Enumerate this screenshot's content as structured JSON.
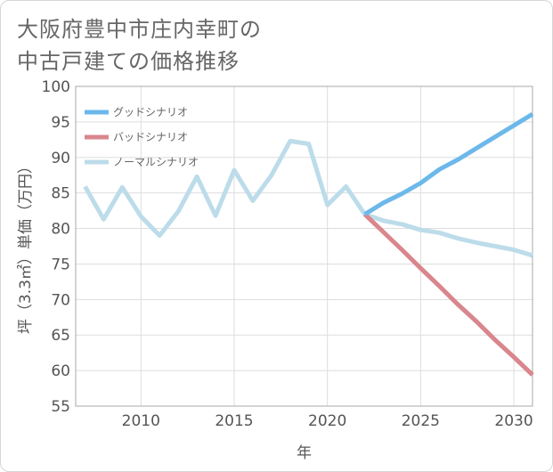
{
  "chart_data": {
    "type": "line",
    "title": "大阪府豊中市庄内幸町の\n中古戸建ての価格推移",
    "xlabel": "年",
    "ylabel": "坪（3.3㎡）単価（万円）",
    "xlim": [
      2006.5,
      2031
    ],
    "ylim": [
      55,
      100
    ],
    "x_ticks": [
      2010,
      2015,
      2020,
      2025,
      2030
    ],
    "y_ticks": [
      55,
      60,
      65,
      70,
      75,
      80,
      85,
      90,
      95,
      100
    ],
    "grid": true,
    "legend_position": "top-left",
    "series": [
      {
        "name": "グッドシナリオ",
        "color": "#6cb8ea",
        "x": [
          2022,
          2023,
          2024,
          2025,
          2026,
          2027,
          2028,
          2029,
          2030,
          2031
        ],
        "values": [
          82,
          83.6,
          84.9,
          86.4,
          88.3,
          89.7,
          91.3,
          92.9,
          94.5,
          96.1
        ]
      },
      {
        "name": "バッドシナリオ",
        "color": "#d9868d",
        "x": [
          2022,
          2023,
          2024,
          2025,
          2026,
          2027,
          2028,
          2029,
          2030,
          2031
        ],
        "values": [
          82,
          79.5,
          77,
          74.4,
          71.9,
          69.3,
          66.9,
          64.3,
          61.9,
          59.4
        ]
      },
      {
        "name": "ノーマルシナリオ",
        "color": "#bcdcea",
        "x": [
          2007,
          2008,
          2009,
          2010,
          2011,
          2012,
          2013,
          2014,
          2015,
          2016,
          2017,
          2018,
          2019,
          2020,
          2021,
          2022,
          2023,
          2024,
          2025,
          2026,
          2027,
          2028,
          2029,
          2030,
          2031
        ],
        "values": [
          85.9,
          81.3,
          85.8,
          81.7,
          79.0,
          82.4,
          87.3,
          81.8,
          88.2,
          83.9,
          87.5,
          92.3,
          91.9,
          83.3,
          85.9,
          82,
          81.1,
          80.6,
          79.8,
          79.4,
          78.6,
          78.0,
          77.5,
          77.0,
          76.2
        ]
      }
    ]
  }
}
